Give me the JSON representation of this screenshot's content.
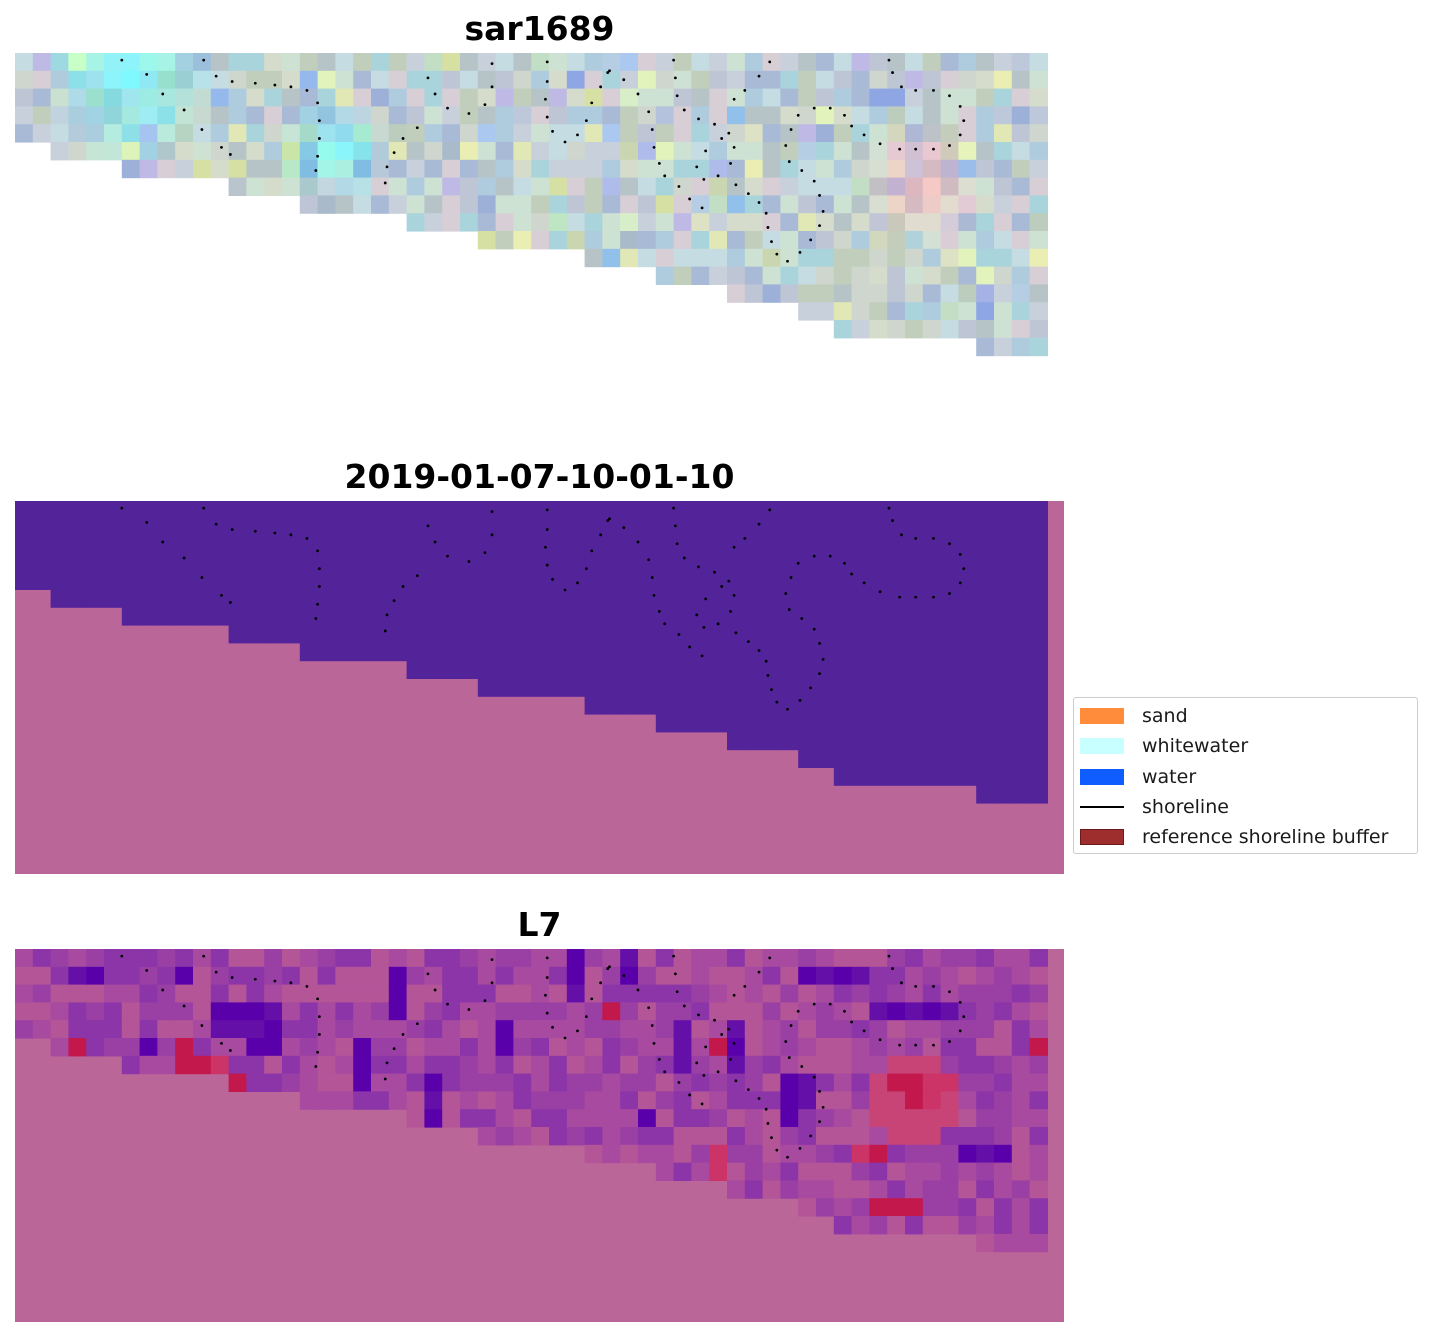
{
  "panels": [
    {
      "title": "sar1689"
    },
    {
      "title": "2019-01-07-10-01-10"
    },
    {
      "title": "L7"
    }
  ],
  "legend": {
    "items": [
      {
        "label": "sand",
        "color": "#ff8c3a",
        "kind": "patch"
      },
      {
        "label": "whitewater",
        "color": "#c8ffff",
        "kind": "patch"
      },
      {
        "label": "water",
        "color": "#0f5cff",
        "kind": "patch"
      },
      {
        "label": "shoreline",
        "color": "#000000",
        "kind": "line"
      },
      {
        "label": "reference shoreline buffer",
        "color": "#9e2e2e",
        "kind": "patch"
      }
    ]
  },
  "colors": {
    "background_mask": "#bb6699",
    "water_class": "#53239a",
    "dots": "#000000"
  }
}
